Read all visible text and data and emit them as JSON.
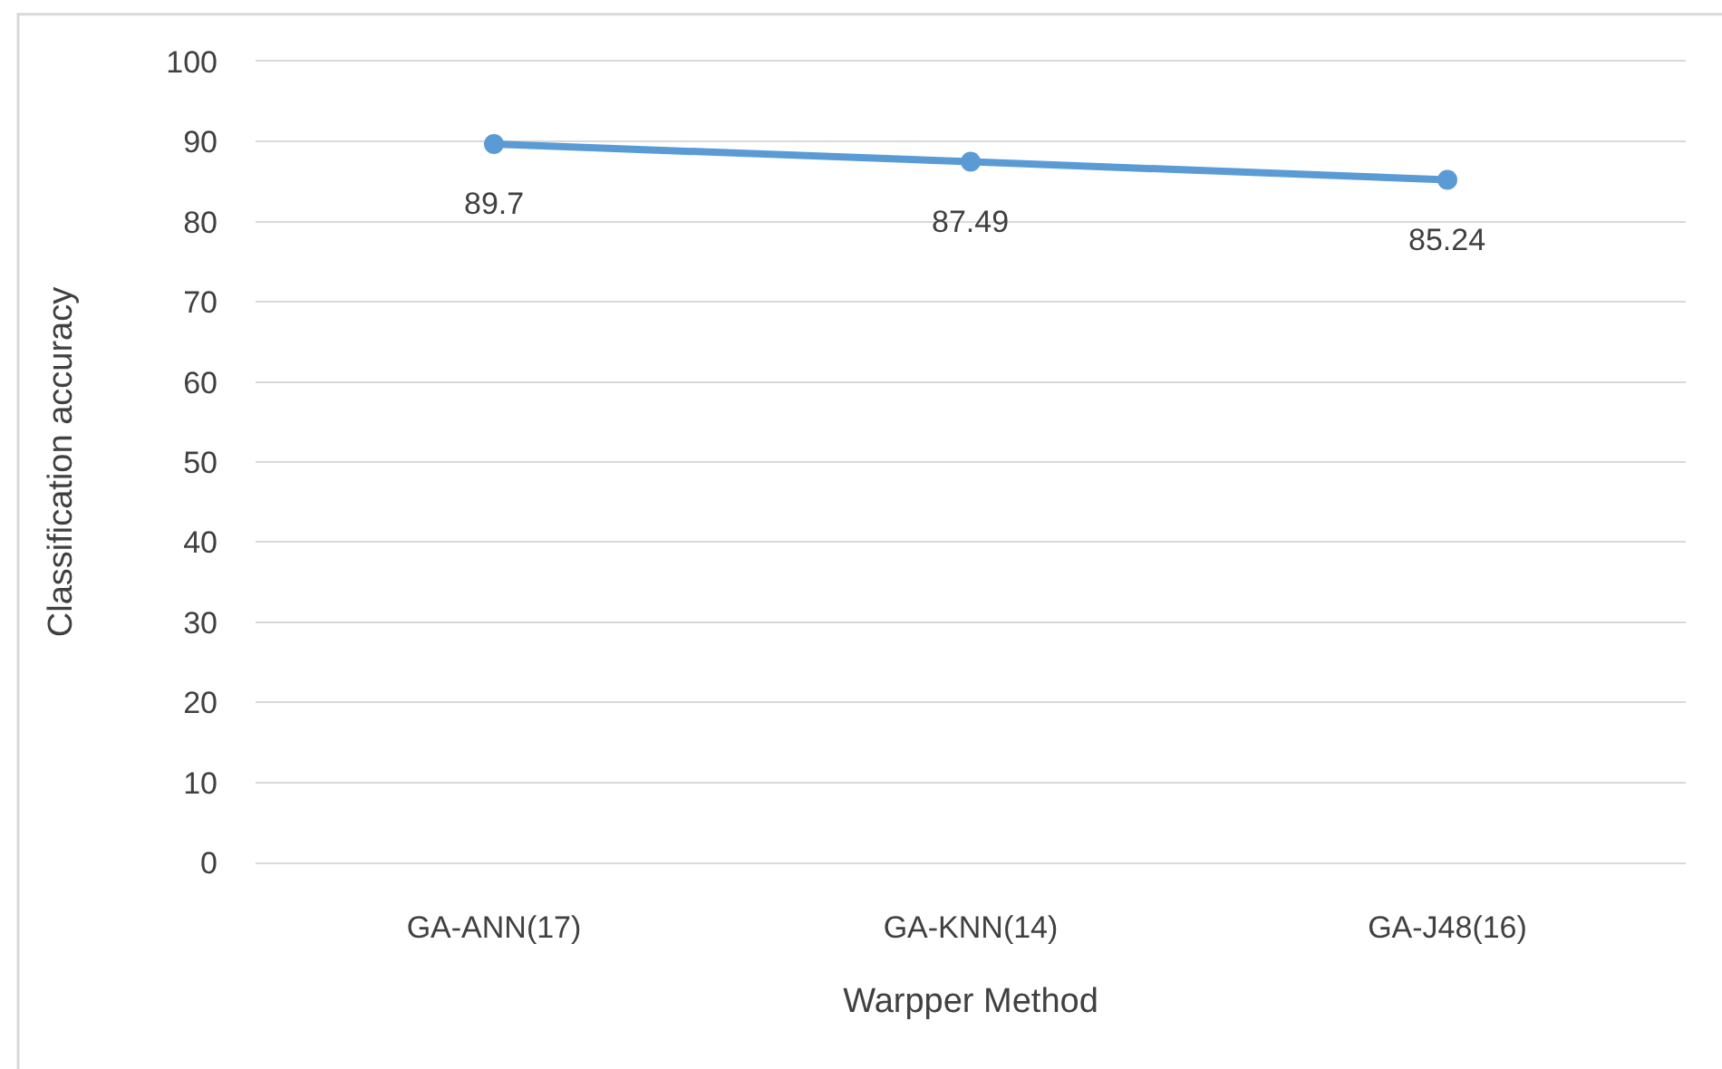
{
  "chart_data": {
    "type": "line",
    "xlabel": "Warpper Method",
    "ylabel": "Classification accuracy",
    "categories": [
      "GA-ANN(17)",
      "GA-KNN(14)",
      "GA-J48(16)"
    ],
    "series": [
      {
        "color": "#5b9bd5",
        "values": [
          89.7,
          87.49,
          85.24
        ]
      }
    ],
    "ylim": [
      0,
      100
    ],
    "yticks": [
      0,
      10,
      20,
      30,
      40,
      50,
      60,
      70,
      80,
      90,
      100
    ],
    "grid": "y",
    "marker": "circle",
    "line_style": "solid",
    "data_labels": true
  }
}
